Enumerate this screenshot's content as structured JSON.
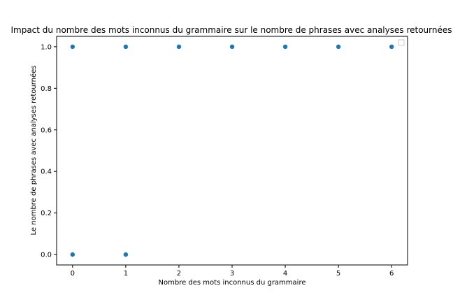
{
  "chart_data": {
    "type": "scatter",
    "title": "Impact du nombre des mots inconnus du grammaire sur le nombre de phrases avec analyses retournées",
    "xlabel": "Nombre des mots inconnus du grammaire",
    "ylabel": "Le nombre de phrases avec analyses retournées",
    "xlim": [
      -0.3,
      6.3
    ],
    "ylim": [
      -0.05,
      1.05
    ],
    "xticks": [
      0,
      1,
      2,
      3,
      4,
      5,
      6
    ],
    "xtick_labels": [
      "0",
      "1",
      "2",
      "3",
      "4",
      "5",
      "6"
    ],
    "yticks": [
      0.0,
      0.2,
      0.4,
      0.6,
      0.8,
      1.0
    ],
    "ytick_labels": [
      "0.0",
      "0.2",
      "0.4",
      "0.6",
      "0.8",
      "1.0"
    ],
    "grid": false,
    "legend": "top-right",
    "marker_color": "#1f77b4",
    "points": [
      {
        "x": 0,
        "y": 1.0
      },
      {
        "x": 1,
        "y": 1.0
      },
      {
        "x": 2,
        "y": 1.0
      },
      {
        "x": 3,
        "y": 1.0
      },
      {
        "x": 4,
        "y": 1.0
      },
      {
        "x": 5,
        "y": 1.0
      },
      {
        "x": 6,
        "y": 1.0
      },
      {
        "x": 0,
        "y": 0.0
      },
      {
        "x": 1,
        "y": 0.0
      }
    ]
  }
}
